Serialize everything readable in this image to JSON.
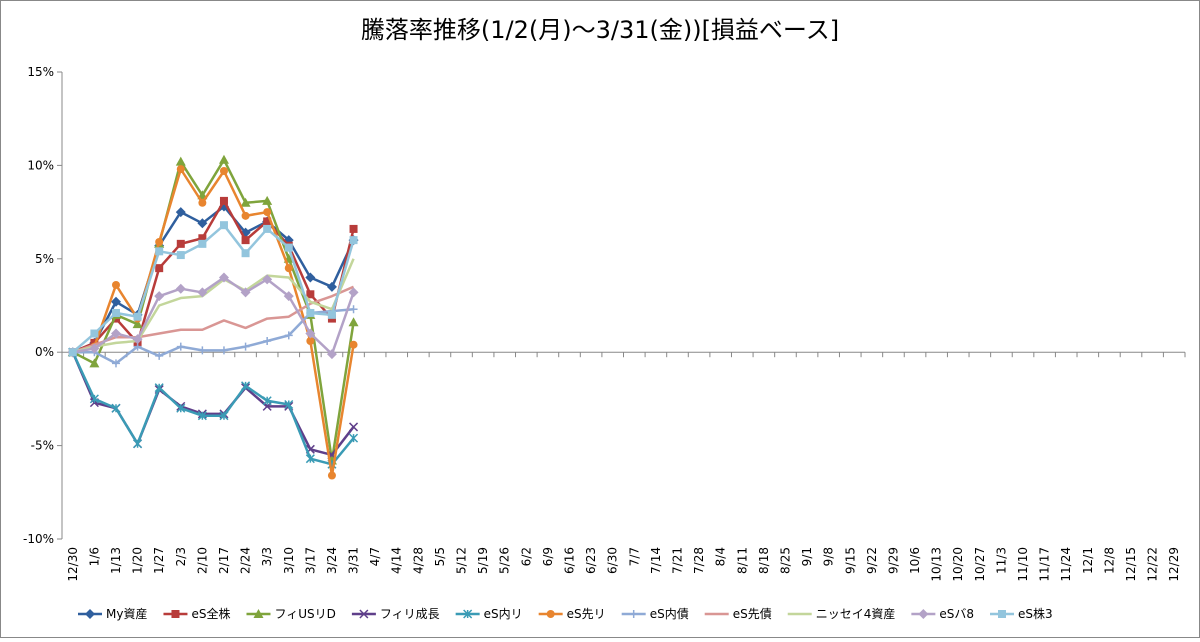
{
  "chart_data": {
    "type": "line",
    "title": "騰落率推移(1/2(月)～3/31(金))[損益ベース]",
    "categories": [
      "12/30",
      "1/6",
      "1/13",
      "1/20",
      "1/27",
      "2/3",
      "2/10",
      "2/17",
      "2/24",
      "3/3",
      "3/10",
      "3/17",
      "3/24",
      "3/31",
      "4/7",
      "4/14",
      "4/28",
      "5/5",
      "5/12",
      "5/19",
      "5/26",
      "6/2",
      "6/9",
      "6/16",
      "6/23",
      "6/30",
      "7/7",
      "7/14",
      "7/21",
      "7/28",
      "8/4",
      "8/11",
      "8/18",
      "8/25",
      "9/1",
      "9/8",
      "9/15",
      "9/22",
      "9/29",
      "10/6",
      "10/13",
      "10/20",
      "10/27",
      "11/3",
      "11/10",
      "11/17",
      "11/24",
      "12/1",
      "12/8",
      "12/15",
      "12/22",
      "12/29"
    ],
    "ylim": [
      -10,
      15
    ],
    "yticks": [
      {
        "value": -10,
        "label": "-10%"
      },
      {
        "value": -5,
        "label": "-5%"
      },
      {
        "value": 0,
        "label": "0%"
      },
      {
        "value": 5,
        "label": "5%"
      },
      {
        "value": 10,
        "label": "10%"
      },
      {
        "value": 15,
        "label": "15%"
      }
    ],
    "grid": false,
    "legend": "bottom",
    "series": [
      {
        "name": "My資産",
        "color": "#2f5f9e",
        "marker": "diamond",
        "values": [
          0,
          0.5,
          2.7,
          2.0,
          5.7,
          7.5,
          6.9,
          7.8,
          6.4,
          7.0,
          6.0,
          4.0,
          3.5,
          6.0,
          null,
          null,
          null,
          null,
          null,
          null,
          null,
          null,
          null,
          null,
          null,
          null,
          null,
          null,
          null,
          null,
          null,
          null,
          null,
          null,
          null,
          null,
          null,
          null,
          null,
          null,
          null,
          null,
          null,
          null,
          null,
          null,
          null,
          null,
          null,
          null,
          null,
          null
        ]
      },
      {
        "name": "eS全株",
        "color": "#b83c3a",
        "marker": "square",
        "values": [
          0,
          0.5,
          1.8,
          0.5,
          4.5,
          5.8,
          6.1,
          8.1,
          6.0,
          7.0,
          5.7,
          3.1,
          1.8,
          6.6,
          null,
          null,
          null,
          null,
          null,
          null,
          null,
          null,
          null,
          null,
          null,
          null,
          null,
          null,
          null,
          null,
          null,
          null,
          null,
          null,
          null,
          null,
          null,
          null,
          null,
          null,
          null,
          null,
          null,
          null,
          null,
          null,
          null,
          null,
          null,
          null,
          null,
          null
        ]
      },
      {
        "name": "フィUSリD",
        "color": "#7fa43c",
        "marker": "triangle",
        "values": [
          0,
          -0.6,
          2.0,
          1.5,
          5.8,
          10.2,
          8.4,
          10.3,
          8.0,
          8.1,
          5.0,
          2.0,
          -5.8,
          1.6,
          null,
          null,
          null,
          null,
          null,
          null,
          null,
          null,
          null,
          null,
          null,
          null,
          null,
          null,
          null,
          null,
          null,
          null,
          null,
          null,
          null,
          null,
          null,
          null,
          null,
          null,
          null,
          null,
          null,
          null,
          null,
          null,
          null,
          null,
          null,
          null,
          null,
          null
        ]
      },
      {
        "name": "フィリ成長",
        "color": "#5f3f8a",
        "marker": "x",
        "values": [
          0,
          -2.7,
          -3.0,
          -4.9,
          -2.0,
          -2.9,
          -3.3,
          -3.3,
          -1.9,
          -2.9,
          -2.9,
          -5.2,
          -5.5,
          -4.0,
          null,
          null,
          null,
          null,
          null,
          null,
          null,
          null,
          null,
          null,
          null,
          null,
          null,
          null,
          null,
          null,
          null,
          null,
          null,
          null,
          null,
          null,
          null,
          null,
          null,
          null,
          null,
          null,
          null,
          null,
          null,
          null,
          null,
          null,
          null,
          null,
          null,
          null
        ]
      },
      {
        "name": "eS内リ",
        "color": "#3a9bb5",
        "marker": "star",
        "values": [
          0,
          -2.5,
          -3.0,
          -4.9,
          -1.9,
          -3.0,
          -3.4,
          -3.4,
          -1.8,
          -2.6,
          -2.8,
          -5.7,
          -6.0,
          -4.6,
          null,
          null,
          null,
          null,
          null,
          null,
          null,
          null,
          null,
          null,
          null,
          null,
          null,
          null,
          null,
          null,
          null,
          null,
          null,
          null,
          null,
          null,
          null,
          null,
          null,
          null,
          null,
          null,
          null,
          null,
          null,
          null,
          null,
          null,
          null,
          null,
          null,
          null
        ]
      },
      {
        "name": "eS先リ",
        "color": "#e8852f",
        "marker": "circle",
        "values": [
          0,
          0.3,
          3.6,
          1.8,
          5.9,
          9.8,
          8.0,
          9.7,
          7.3,
          7.5,
          4.5,
          0.6,
          -6.6,
          0.4,
          null,
          null,
          null,
          null,
          null,
          null,
          null,
          null,
          null,
          null,
          null,
          null,
          null,
          null,
          null,
          null,
          null,
          null,
          null,
          null,
          null,
          null,
          null,
          null,
          null,
          null,
          null,
          null,
          null,
          null,
          null,
          null,
          null,
          null,
          null,
          null,
          null,
          null
        ]
      },
      {
        "name": "eS内債",
        "color": "#8faad6",
        "marker": "plus",
        "values": [
          0,
          0,
          -0.6,
          0.3,
          -0.2,
          0.3,
          0.1,
          0.1,
          0.3,
          0.6,
          0.9,
          2.1,
          2.2,
          2.3,
          null,
          null,
          null,
          null,
          null,
          null,
          null,
          null,
          null,
          null,
          null,
          null,
          null,
          null,
          null,
          null,
          null,
          null,
          null,
          null,
          null,
          null,
          null,
          null,
          null,
          null,
          null,
          null,
          null,
          null,
          null,
          null,
          null,
          null,
          null,
          null,
          null,
          null
        ]
      },
      {
        "name": "eS先債",
        "color": "#d99694",
        "marker": "none",
        "values": [
          0,
          0.4,
          0.8,
          0.8,
          1.0,
          1.2,
          1.2,
          1.7,
          1.3,
          1.8,
          1.9,
          2.6,
          3.0,
          3.5,
          null,
          null,
          null,
          null,
          null,
          null,
          null,
          null,
          null,
          null,
          null,
          null,
          null,
          null,
          null,
          null,
          null,
          null,
          null,
          null,
          null,
          null,
          null,
          null,
          null,
          null,
          null,
          null,
          null,
          null,
          null,
          null,
          null,
          null,
          null,
          null,
          null,
          null
        ]
      },
      {
        "name": "ニッセイ4資産",
        "color": "#c3d69b",
        "marker": "none",
        "values": [
          0,
          0.3,
          0.5,
          0.6,
          2.5,
          2.9,
          3.0,
          3.9,
          3.3,
          4.1,
          4.0,
          2.7,
          2.3,
          5.0,
          null,
          null,
          null,
          null,
          null,
          null,
          null,
          null,
          null,
          null,
          null,
          null,
          null,
          null,
          null,
          null,
          null,
          null,
          null,
          null,
          null,
          null,
          null,
          null,
          null,
          null,
          null,
          null,
          null,
          null,
          null,
          null,
          null,
          null,
          null,
          null,
          null,
          null
        ]
      },
      {
        "name": "eSバ8",
        "color": "#b3a2c7",
        "marker": "diamond",
        "values": [
          0,
          0.2,
          1.0,
          0.7,
          3.0,
          3.4,
          3.2,
          4.0,
          3.2,
          3.9,
          3.0,
          1.0,
          -0.1,
          3.2,
          null,
          null,
          null,
          null,
          null,
          null,
          null,
          null,
          null,
          null,
          null,
          null,
          null,
          null,
          null,
          null,
          null,
          null,
          null,
          null,
          null,
          null,
          null,
          null,
          null,
          null,
          null,
          null,
          null,
          null,
          null,
          null,
          null,
          null,
          null,
          null,
          null,
          null
        ]
      },
      {
        "name": "eS株3",
        "color": "#93c5dd",
        "marker": "square",
        "values": [
          0,
          1.0,
          2.1,
          1.9,
          5.4,
          5.2,
          5.8,
          6.8,
          5.3,
          6.6,
          5.6,
          2.1,
          2.0,
          6.0,
          null,
          null,
          null,
          null,
          null,
          null,
          null,
          null,
          null,
          null,
          null,
          null,
          null,
          null,
          null,
          null,
          null,
          null,
          null,
          null,
          null,
          null,
          null,
          null,
          null,
          null,
          null,
          null,
          null,
          null,
          null,
          null,
          null,
          null,
          null,
          null,
          null,
          null
        ]
      }
    ]
  }
}
